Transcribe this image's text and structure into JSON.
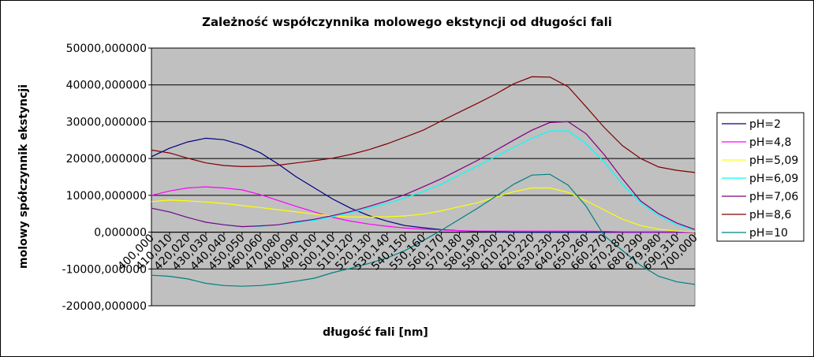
{
  "chart_data": {
    "type": "line",
    "title": "Zależność współczynnika molowego ekstyncji od długości fali",
    "xlabel": "długość fali [nm]",
    "ylabel": "molowy spółczynnik ekstyncji",
    "ylim": [
      -20000,
      50000
    ],
    "ytick_labels": [
      "50000,000000",
      "40000,000000",
      "30000,000000",
      "20000,000000",
      "10000,000000",
      "0,000000",
      "-10000,000000",
      "-20000,000000"
    ],
    "ytick_values": [
      50000,
      40000,
      30000,
      20000,
      10000,
      0,
      -10000,
      -20000
    ],
    "categories": [
      "400,000",
      "410,010",
      "420,020",
      "430,030",
      "440,040",
      "450,050",
      "460,060",
      "470,080",
      "480,090",
      "490,100",
      "500,110",
      "510,120",
      "520,130",
      "530,140",
      "540,150",
      "550,160",
      "560,170",
      "570,180",
      "580,190",
      "590,200",
      "610,210",
      "620,220",
      "630,230",
      "640,250",
      "650,260",
      "660,270",
      "670,280",
      "680,290",
      "679,980",
      "690,310",
      "700,000"
    ],
    "grid": true,
    "plot_background": "#c0c0c0",
    "legend_position": "right",
    "series": [
      {
        "name": "pH=2",
        "color": "#000080",
        "values": [
          20500,
          22800,
          24500,
          25500,
          25100,
          23700,
          21600,
          18500,
          15000,
          12000,
          9000,
          6500,
          4500,
          3000,
          1800,
          1200,
          700,
          400,
          200,
          100,
          0,
          0,
          0,
          0,
          0,
          0,
          0,
          0,
          0,
          0,
          0
        ]
      },
      {
        "name": "pH=4,8",
        "color": "#ff00ff",
        "values": [
          10000,
          11200,
          12000,
          12300,
          12000,
          11500,
          10200,
          8600,
          7000,
          5500,
          4000,
          3000,
          2200,
          1600,
          1100,
          800,
          600,
          400,
          300,
          300,
          300,
          300,
          300,
          300,
          300,
          200,
          100,
          100,
          100,
          100,
          0
        ]
      },
      {
        "name": "pH=5,09",
        "color": "#ffff00",
        "values": [
          8300,
          8700,
          8500,
          8200,
          7800,
          7200,
          6700,
          6100,
          5500,
          4900,
          4400,
          4100,
          4100,
          4200,
          4400,
          4900,
          5800,
          6900,
          8000,
          9500,
          11000,
          12000,
          12000,
          10800,
          8500,
          6000,
          3500,
          1800,
          800,
          300,
          100
        ]
      },
      {
        "name": "pH=6,09",
        "color": "#00ffff",
        "values": [
          6500,
          5500,
          4000,
          2700,
          2000,
          1600,
          1600,
          2000,
          2600,
          3200,
          4200,
          5300,
          6500,
          7800,
          9300,
          11000,
          13000,
          15500,
          18000,
          20500,
          23000,
          25500,
          27500,
          27500,
          24000,
          19000,
          13000,
          8000,
          4500,
          2000,
          600
        ]
      },
      {
        "name": "pH=7,06",
        "color": "#800080",
        "values": [
          6500,
          5500,
          4000,
          2700,
          2000,
          1500,
          1700,
          2000,
          2800,
          3500,
          4500,
          5600,
          7000,
          8500,
          10200,
          12300,
          14500,
          17000,
          19500,
          22200,
          25000,
          27700,
          29800,
          30000,
          26700,
          21000,
          14500,
          8500,
          5000,
          2500,
          700
        ]
      },
      {
        "name": "pH=8,6",
        "color": "#800000",
        "values": [
          22300,
          21500,
          20100,
          18800,
          18100,
          17800,
          17900,
          18200,
          18800,
          19400,
          20100,
          21100,
          22400,
          24000,
          25800,
          27700,
          30200,
          32600,
          35000,
          37500,
          40300,
          42200,
          42100,
          39500,
          34000,
          28400,
          23500,
          20000,
          17700,
          16800,
          16200
        ]
      },
      {
        "name": "pH=10",
        "color": "#008080",
        "values": [
          -11700,
          -12000,
          -12700,
          -13900,
          -14500,
          -14700,
          -14500,
          -14000,
          -13300,
          -12500,
          -11000,
          -9800,
          -8500,
          -7000,
          -5000,
          -2300,
          500,
          3500,
          6500,
          9700,
          13000,
          15500,
          15700,
          12800,
          7000,
          -1000,
          -5000,
          -9000,
          -12000,
          -13500,
          -14200
        ]
      }
    ]
  }
}
